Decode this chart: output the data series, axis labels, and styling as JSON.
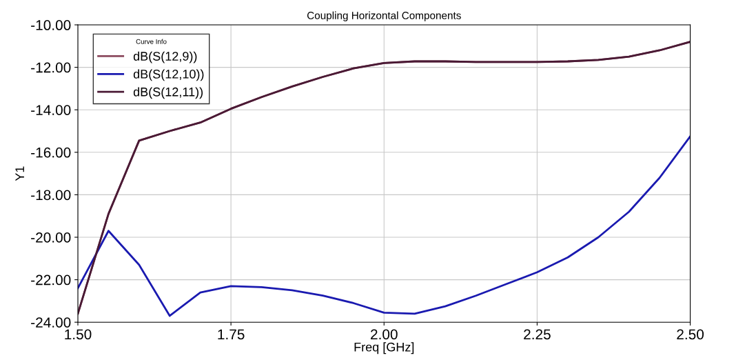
{
  "chart_data": {
    "type": "line",
    "title": "Coupling Horizontal Components",
    "xlabel": "Freq [GHz]",
    "ylabel": "Y1",
    "legend_title": "Curve Info",
    "x": [
      1.5,
      1.55,
      1.6,
      1.65,
      1.7,
      1.75,
      1.8,
      1.85,
      1.9,
      1.95,
      2.0,
      2.05,
      2.1,
      2.15,
      2.2,
      2.25,
      2.3,
      2.35,
      2.4,
      2.45,
      2.5
    ],
    "series": [
      {
        "name": "dB(S(12,9))",
        "color": "#8b4a5e",
        "values": [
          -23.6,
          -18.9,
          -15.45,
          -15.0,
          -14.6,
          -13.95,
          -13.4,
          -12.9,
          -12.45,
          -12.05,
          -11.8,
          -11.72,
          -11.72,
          -11.75,
          -11.75,
          -11.75,
          -11.72,
          -11.65,
          -11.5,
          -11.2,
          -10.8
        ]
      },
      {
        "name": "dB(S(12,10))",
        "color": "#1a1ab0",
        "values": [
          -22.4,
          -19.7,
          -21.3,
          -23.7,
          -22.6,
          -22.3,
          -22.35,
          -22.5,
          -22.75,
          -23.1,
          -23.55,
          -23.6,
          -23.25,
          -22.75,
          -22.2,
          -21.65,
          -20.95,
          -20.0,
          -18.8,
          -17.2,
          -15.25
        ]
      },
      {
        "name": "dB(S(12,11))",
        "color": "#4a1a35",
        "values": [
          -23.6,
          -18.9,
          -15.45,
          -15.0,
          -14.6,
          -13.95,
          -13.4,
          -12.9,
          -12.45,
          -12.05,
          -11.8,
          -11.72,
          -11.72,
          -11.75,
          -11.75,
          -11.75,
          -11.72,
          -11.65,
          -11.5,
          -11.2,
          -10.8
        ]
      }
    ],
    "xlim": [
      1.5,
      2.5
    ],
    "xticks": [
      {
        "value": 1.5,
        "label": "1.50"
      },
      {
        "value": 1.75,
        "label": "1.75"
      },
      {
        "value": 2.0,
        "label": "2.00"
      },
      {
        "value": 2.25,
        "label": "2.25"
      },
      {
        "value": 2.5,
        "label": "2.50"
      }
    ],
    "ylim": [
      -24,
      -10
    ],
    "yticks": [
      {
        "value": -24,
        "label": "-24.00"
      },
      {
        "value": -22,
        "label": "-22.00"
      },
      {
        "value": -20,
        "label": "-20.00"
      },
      {
        "value": -18,
        "label": "-18.00"
      },
      {
        "value": -16,
        "label": "-16.00"
      },
      {
        "value": -14,
        "label": "-14.00"
      },
      {
        "value": -12,
        "label": "-12.00"
      },
      {
        "value": -10,
        "label": "-10.00"
      }
    ],
    "grid": true,
    "legend": "top left",
    "line_style": "solid",
    "marker": "none"
  }
}
